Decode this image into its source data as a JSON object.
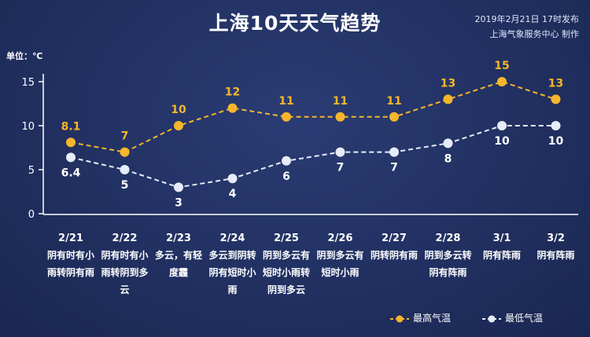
{
  "header": {
    "title": "上海10天天气趋势",
    "published": "2019年2月21日 17时发布",
    "producer": "上海气象服务中心 制作",
    "unit": "单位：℃"
  },
  "colors": {
    "high": "#f5b62c",
    "low": "#e6ecf8"
  },
  "days": [
    {
      "date": "2/21",
      "desc": "阴有时有小雨转阴有雨"
    },
    {
      "date": "2/22",
      "desc": "阴有时有小雨转阴到多云"
    },
    {
      "date": "2/23",
      "desc": "多云，有轻度霾"
    },
    {
      "date": "2/24",
      "desc": "多云到阴转阴有短时小雨"
    },
    {
      "date": "2/25",
      "desc": "阴到多云有短时小雨转阴到多云"
    },
    {
      "date": "2/26",
      "desc": "阴到多云有短时小雨"
    },
    {
      "date": "2/27",
      "desc": "阴转阴有雨"
    },
    {
      "date": "2/28",
      "desc": "阴到多云转阴有阵雨"
    },
    {
      "date": "3/1",
      "desc": "阴有阵雨"
    },
    {
      "date": "3/2",
      "desc": "阴有阵雨"
    }
  ],
  "chart_data": {
    "type": "line",
    "title": "上海10天天气趋势",
    "x": [
      "2/21",
      "2/22",
      "2/23",
      "2/24",
      "2/25",
      "2/26",
      "2/27",
      "2/28",
      "3/1",
      "3/2"
    ],
    "series": [
      {
        "name": "最高气温",
        "values": [
          8.1,
          7,
          10,
          12,
          11,
          11,
          11,
          13,
          15,
          13
        ],
        "labels": [
          "8.1",
          "7",
          "10",
          "12",
          "11",
          "11",
          "11",
          "13",
          "15",
          "13"
        ]
      },
      {
        "name": "最低气温",
        "values": [
          6.4,
          5,
          3,
          4,
          6,
          7,
          7,
          8,
          10,
          10
        ],
        "labels": [
          "6.4",
          "5",
          "3",
          "4",
          "6",
          "7",
          "7",
          "8",
          "10",
          "10"
        ]
      }
    ],
    "ylim": [
      0,
      15
    ],
    "yticks": [
      "0",
      "5",
      "10",
      "15"
    ],
    "legend": "bottom-right",
    "grid": false,
    "line_style": "dashed"
  }
}
